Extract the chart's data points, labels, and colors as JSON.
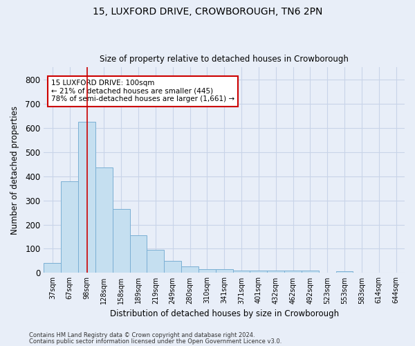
{
  "title": "15, LUXFORD DRIVE, CROWBOROUGH, TN6 2PN",
  "subtitle": "Size of property relative to detached houses in Crowborough",
  "xlabel": "Distribution of detached houses by size in Crowborough",
  "ylabel": "Number of detached properties",
  "categories": [
    "37sqm",
    "67sqm",
    "98sqm",
    "128sqm",
    "158sqm",
    "189sqm",
    "219sqm",
    "249sqm",
    "280sqm",
    "310sqm",
    "341sqm",
    "371sqm",
    "401sqm",
    "432sqm",
    "462sqm",
    "492sqm",
    "523sqm",
    "553sqm",
    "583sqm",
    "614sqm",
    "644sqm"
  ],
  "values": [
    42,
    380,
    625,
    435,
    265,
    155,
    95,
    50,
    27,
    15,
    15,
    10,
    10,
    10,
    10,
    10,
    0,
    7,
    0,
    0,
    0
  ],
  "bar_color": "#c5dff0",
  "bar_edge_color": "#7aafd4",
  "grid_color": "#c8d4e8",
  "vline_x": 2,
  "vline_color": "#cc0000",
  "annotation_line1": "15 LUXFORD DRIVE: 100sqm",
  "annotation_line2": "← 21% of detached houses are smaller (445)",
  "annotation_line3": "78% of semi-detached houses are larger (1,661) →",
  "annotation_box_color": "white",
  "annotation_box_edge": "#cc0000",
  "ylim": [
    0,
    850
  ],
  "yticks": [
    0,
    100,
    200,
    300,
    400,
    500,
    600,
    700,
    800
  ],
  "footer1": "Contains HM Land Registry data © Crown copyright and database right 2024.",
  "footer2": "Contains public sector information licensed under the Open Government Licence v3.0.",
  "bg_color": "#e8eef8"
}
